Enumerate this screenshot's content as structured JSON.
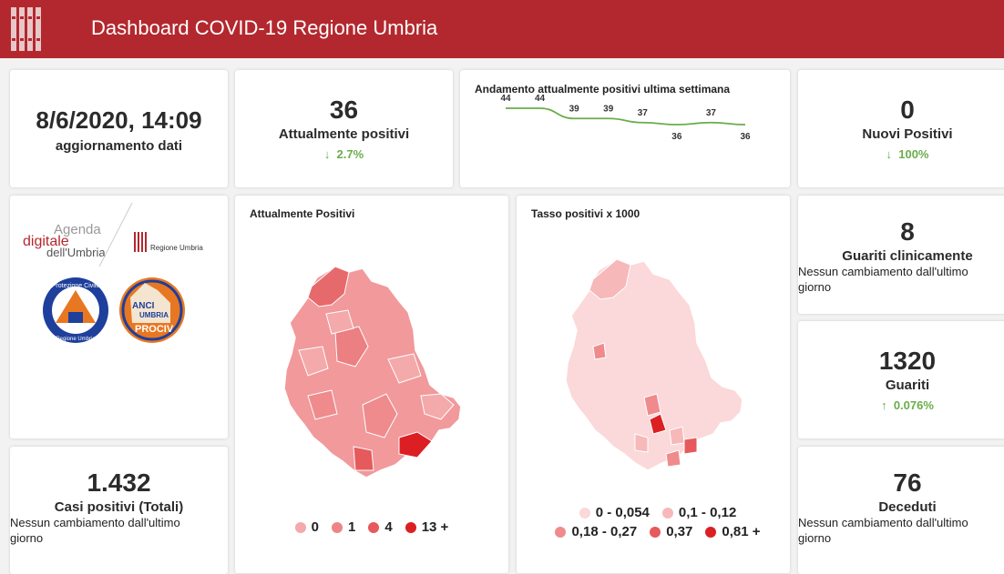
{
  "header": {
    "title": "Dashboard COVID-19 Regione Umbria"
  },
  "update": {
    "datetime": "8/6/2020, 14:09",
    "label": "aggiornamento dati"
  },
  "attualmente_positivi": {
    "value": "36",
    "label": "Attualmente positivi",
    "delta": "2.7%",
    "delta_dir": "down"
  },
  "trend": {
    "title": "Andamento attualmente positivi ultima settimana",
    "values": [
      44,
      44,
      39,
      39,
      37,
      36,
      37,
      36
    ],
    "line_color": "#6aad4b"
  },
  "nuovi_positivi": {
    "value": "0",
    "label": "Nuovi Positivi",
    "delta": "100%",
    "delta_dir": "down"
  },
  "logos": {
    "agenda": [
      "Agenda",
      "digitale",
      "dell'Umbria"
    ],
    "regione": "Regione Umbria",
    "protezione_top": "Protezione Civile",
    "protezione_bottom": "Regione Umbria",
    "anci": [
      "ANCI",
      "UMBRIA",
      "PROCIV"
    ]
  },
  "map_positivi": {
    "title": "Attualmente Positivi",
    "legend": [
      {
        "label": "0",
        "color": "#f4a9aa"
      },
      {
        "label": "1",
        "color": "#ee8486"
      },
      {
        "label": "4",
        "color": "#e65a5c"
      },
      {
        "label": "13 +",
        "color": "#dc1f22"
      }
    ]
  },
  "map_tasso": {
    "title": "Tasso positivi x 1000",
    "legend": [
      {
        "label": "0 - 0,054",
        "color": "#fbd8d9"
      },
      {
        "label": "0,1 - 0,12",
        "color": "#f7b8b9"
      },
      {
        "label": "0,18 - 0,27",
        "color": "#ef8b8d"
      },
      {
        "label": "0,37",
        "color": "#e65a5c"
      },
      {
        "label": "0,81 +",
        "color": "#dc1f22"
      }
    ]
  },
  "casi_totali": {
    "value": "1.432",
    "label": "Casi positivi (Totali)",
    "note": "Nessun cambiamento dall'ultimo giorno"
  },
  "guariti_clinicamente": {
    "value": "8",
    "label": "Guariti clinicamente",
    "note": "Nessun cambiamento dall'ultimo giorno"
  },
  "guariti": {
    "value": "1320",
    "label": "Guariti",
    "delta": "0.076%",
    "delta_dir": "up"
  },
  "deceduti": {
    "value": "76",
    "label": "Deceduti",
    "note": "Nessun cambiamento dall'ultimo giorno"
  },
  "colors": {
    "header": "#b3282e",
    "positive_delta": "#6aad4b"
  }
}
